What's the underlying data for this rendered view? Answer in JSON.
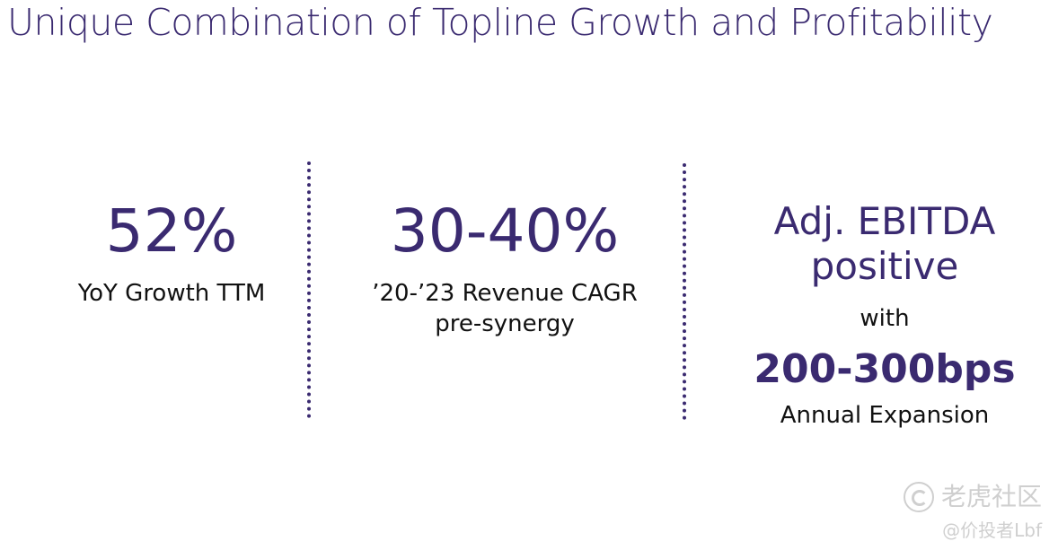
{
  "title": "Unique Combination of Topline Growth and Profitability",
  "metrics": [
    {
      "value": "52%",
      "label": "YoY Growth TTM"
    },
    {
      "value": "30-40%",
      "label_line1": "’20-’23 Revenue CAGR",
      "label_line2": "pre-synergy"
    },
    {
      "headline_line1": "Adj. EBITDA",
      "headline_line2": "positive",
      "connector": "with",
      "value": "200-300bps",
      "label": "Annual Expansion"
    }
  ],
  "watermark": {
    "brand": "老虎社区",
    "user": "@价投者Lbf"
  },
  "colors": {
    "accent": "#3a2a70",
    "text": "#111111",
    "watermark": "#cfcfcf"
  }
}
